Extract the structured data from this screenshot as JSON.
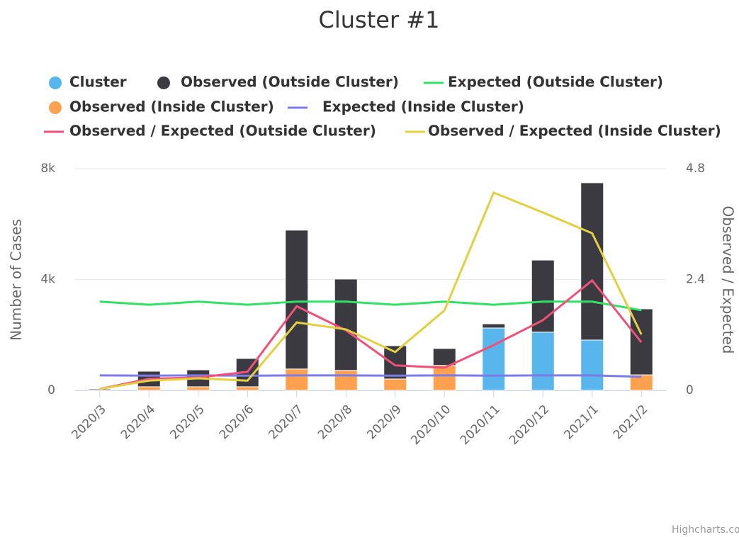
{
  "chart_data": {
    "type": "bar",
    "title": "Cluster #1",
    "y_label": "Number of Cases",
    "y2_label": "Observed / Expected",
    "credits": "Highcharts.com",
    "stacked": true,
    "categories": [
      "2020/3",
      "2020/4",
      "2020/5",
      "2020/6",
      "2020/7",
      "2020/8",
      "2020/9",
      "2020/10",
      "2020/11",
      "2020/12",
      "2021/1",
      "2021/2"
    ],
    "ylim": [
      0,
      8000
    ],
    "yticks": [
      {
        "value": 0,
        "label": "0"
      },
      {
        "value": 4000,
        "label": "4k"
      },
      {
        "value": 8000,
        "label": "8k"
      }
    ],
    "y2lim": [
      0,
      4.8
    ],
    "y2ticks": [
      0,
      2.4,
      4.8
    ],
    "grid": true,
    "series": [
      {
        "name": "Cluster",
        "type": "column",
        "color": "#58b6ec",
        "values": [
          null,
          null,
          null,
          null,
          null,
          null,
          null,
          null,
          2250,
          2100,
          1815,
          null
        ]
      },
      {
        "name": "Observed (Outside Cluster)",
        "type": "column",
        "color": "#3a3a40",
        "values": [
          40,
          560,
          610,
          1020,
          5010,
          3295,
          1200,
          610,
          150,
          2600,
          5675,
          2380
        ]
      },
      {
        "name": "Expected (Outside Cluster)",
        "type": "line",
        "color": "#33e066",
        "values": [
          3200,
          3090,
          3200,
          3090,
          3200,
          3200,
          3090,
          3200,
          3090,
          3200,
          3200,
          2890
        ]
      },
      {
        "name": "Observed (Inside Cluster)",
        "type": "column",
        "color": "#ffa14f",
        "values": [
          10,
          130,
          130,
          130,
          770,
          720,
          410,
          900,
          null,
          null,
          null,
          560
        ]
      },
      {
        "name": "Expected (Inside Cluster)",
        "type": "line",
        "color": "#7c7ce6",
        "values": [
          540,
          530,
          540,
          530,
          540,
          540,
          530,
          540,
          530,
          540,
          540,
          490
        ]
      },
      {
        "name": "Observed / Expected (Outside Cluster)",
        "type": "line",
        "axis": "y2",
        "color": "#f0517a",
        "values": [
          0.03,
          0.25,
          0.28,
          0.4,
          1.82,
          1.3,
          0.54,
          0.49,
          0.98,
          1.52,
          2.38,
          1.04
        ]
      },
      {
        "name": "Observed / Expected (Inside Cluster)",
        "type": "line",
        "axis": "y2",
        "color": "#e3cf40",
        "values": [
          0.03,
          0.21,
          0.26,
          0.21,
          1.47,
          1.32,
          0.83,
          1.73,
          4.28,
          3.85,
          3.4,
          1.21
        ]
      }
    ]
  }
}
